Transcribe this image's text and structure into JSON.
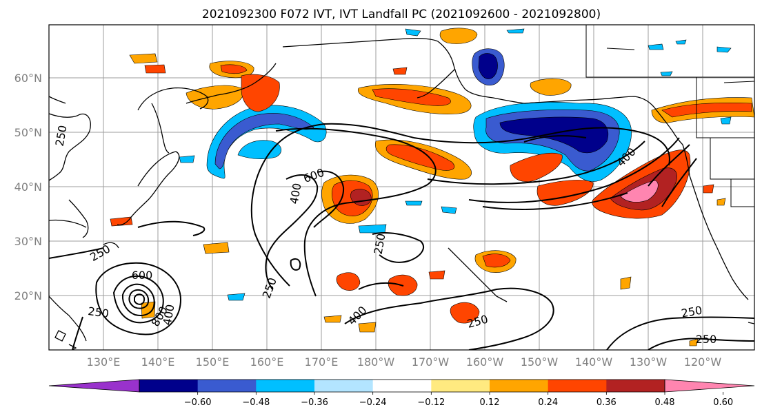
{
  "title": "2021092300 F072 IVT, IVT Landfall PC (2021092600 - 2021092800)",
  "lat_labels": [
    "20°N",
    "30°N",
    "40°N",
    "50°N",
    "60°N"
  ],
  "lon_labels": [
    "130°E",
    "140°E",
    "150°E",
    "160°E",
    "170°E",
    "180°W",
    "170°W",
    "160°W",
    "150°W",
    "140°W",
    "130°W",
    "120°W"
  ],
  "colorbar": {
    "colors": [
      "#9932cc",
      "#00008b",
      "#3a5bd0",
      "#00bfff",
      "#b3e5ff",
      "#ffffff",
      "#ffea80",
      "#ffa500",
      "#ff4500",
      "#b22222",
      "#ff85b0"
    ],
    "tick_labels": [
      "−0.60",
      "−0.48",
      "−0.36",
      "−0.24",
      "−0.12",
      "0.12",
      "0.24",
      "0.36",
      "0.48",
      "0.60"
    ]
  },
  "contour_labels": [
    "250",
    "250",
    "250",
    "250",
    "250",
    "250",
    "250",
    "250",
    "400",
    "400",
    "400",
    "400",
    "600",
    "600",
    "800"
  ]
}
